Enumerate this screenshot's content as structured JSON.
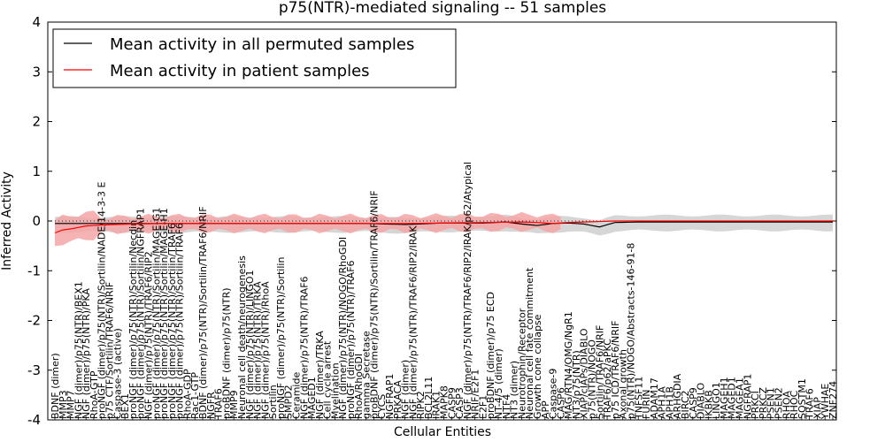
{
  "chart_data": {
    "type": "line",
    "title": "p75(NTR)-mediated signaling -- 51 samples",
    "xlabel": "Cellular Entities",
    "ylabel": "Inferred Activity",
    "ylim": [
      -4,
      4
    ],
    "yticks": [
      -4,
      -3,
      -2,
      -1,
      0,
      1,
      2,
      3,
      4
    ],
    "legend": {
      "placement": "top-left",
      "entries": [
        "Mean activity in all permuted samples",
        "Mean activity in patient samples"
      ]
    },
    "colors": {
      "permuted": "#000000",
      "patient": "#ff0000",
      "patient_band": "#f4a6a6",
      "permuted_band": "#cccccc"
    },
    "categories": [
      "BDNF (dimer)",
      "MMP3",
      "MMP7",
      "NGF (dimer)/p75(NTR)/BEX1",
      "NGF (dimer)/p75(NTR)/PKA",
      "RhoA-GTP",
      "proNGF (dimer)/p75(NTR)/Sortilin/NADE/14-3-3 E",
      "p75 CTF/Sortilin/TRAF6/NRIF",
      "Caspase-3 (active)",
      "BEX1",
      "proNGF (dimer)/p75(NTR)/Sortilin/Necdin",
      "proNGF (dimer)/p75(NTR)/Sortilin/NGFRAP1",
      "NGF (dimer)/p75(NTR)/TRAF6/RIP2",
      "proNGF (dimer)/p75(NTR)/Sortilin/MAGE-G1",
      "proNGF (dimer)/p75(NTR)/Sortilin/MAGE-H1",
      "proNGF (dimer)/p75(NTR)/Sortilin/TRAF6",
      "proNGF (dimer)/p75(NTR)/Sortilin/TRAF6",
      "RhoA-GDP",
      "Rac1-GTP",
      "BDNF (dimer)/p75(NTR)/Sortilin/TRAF6/NRIF",
      "NGFR",
      "TRAF6",
      "proBDNF (dimer)/p75(NTR)",
      "MMP9",
      "Neuronal cell death/neurogenesis",
      "NGF (dimer)/p75(NTR)/LINGO1",
      "NGF (dimer)/p75(NTR)/TRKA",
      "NGF (dimer)/p75(NTR)/RhoA",
      "Sortilin",
      "proNGF (dimer)/p75(NTR)/Sortilin",
      "SMPD2",
      "Ceramide",
      "NGF (dimer)/p75(NTR)/TRAF6",
      "MAGED1",
      "NGF (dimer)/TRKA",
      "Cell cycle arrest",
      "Myelination",
      "NGF (dimer)/p75(NTR)/NOGO/RhoGDI",
      "proNGF (dimer)/p75(NTR)/TRAF6",
      "RhoA/RhoGDI",
      "gamma Secretase",
      "proBDNF (dimer)/p75(NTR)/Sortilin/TRAF6/NRIF",
      "CYCS",
      "NGFRAP1",
      "PRKACA",
      "NGF (dimer)",
      "NGF (dimer)/p75(NTR)/TRAF6/RIP2/IRAK",
      "RIPK2",
      "BCL2L11",
      "IRAK1",
      "MAPK8",
      "CASP9",
      "CASP3",
      "NGF (dimer)/p75(NTR)/TRAF6/RIP2/IRAK/p62/Atypical",
      "NRIF/E2F1",
      "E2F1",
      "proBDNF (dimer)/p75 ECD",
      "NT-4/5 (dimer)",
      "NTF4",
      "NT3 (dimer)",
      "Neurotrophin/Receptor",
      "Neuronal cell fate commitment",
      "Growth cone collapse",
      "APP",
      "Caspase-9",
      "CASP6",
      "MAG/RTN4/OMG/NgR1",
      "NT3/p75(NTR)",
      "XIAP/cIAPs/DIABLO",
      "p75(NTR)/NOGO",
      "Sortilin/TRAF6/NRIF",
      "TRAF6/p62/aPKC",
      "p75 ICD/TRAF6/NRIF",
      "Axonal growth",
      "p75(NTR)/NOGO/Abstracts-146-91-8",
      "TNFSF11",
      "FURIN",
      "ADAM17",
      "APH1A",
      "APH1B",
      "ARHGDIA",
      "BIRC2",
      "CASP9",
      "DIABLO",
      "IKBKB",
      "LINGO1",
      "MAGEH1",
      "MAGED1",
      "MAGEA1",
      "NGFRAP1",
      "PRKCI",
      "PRKCZ",
      "PSEN1",
      "PSEN2",
      "RHOA",
      "RHOC",
      "SQSTM1",
      "TRAF6",
      "XIAP",
      "YWHAE",
      "ZNF274"
    ],
    "patient_mean_at": {
      "x": [
        0,
        1,
        2,
        3,
        4,
        5,
        6,
        8,
        10,
        15,
        20,
        25,
        30,
        35,
        40,
        45,
        50,
        55,
        60,
        62,
        64,
        66,
        68,
        70,
        72,
        75,
        80,
        90,
        100,
        103
      ],
      "y": [
        -0.24,
        -0.18,
        -0.16,
        -0.13,
        -0.1,
        -0.09,
        -0.08,
        -0.07,
        -0.06,
        -0.05,
        -0.05,
        -0.05,
        -0.05,
        -0.05,
        -0.05,
        -0.05,
        -0.04,
        -0.03,
        -0.02,
        -0.03,
        -0.05,
        -0.03,
        -0.02,
        -0.01,
        0.0,
        0.0,
        0.0,
        0.0,
        0.0,
        0.0
      ]
    },
    "permuted_mean_at": {
      "x": [
        0,
        10,
        20,
        30,
        40,
        45,
        50,
        55,
        58,
        60,
        62,
        64,
        66,
        68,
        70,
        72,
        75,
        80,
        90,
        100,
        103
      ],
      "y": [
        -0.05,
        -0.05,
        -0.05,
        -0.05,
        -0.05,
        -0.07,
        -0.04,
        -0.04,
        -0.02,
        -0.06,
        -0.09,
        -0.05,
        -0.04,
        -0.06,
        -0.12,
        -0.03,
        -0.02,
        -0.02,
        -0.02,
        -0.02,
        -0.02
      ]
    }
  }
}
